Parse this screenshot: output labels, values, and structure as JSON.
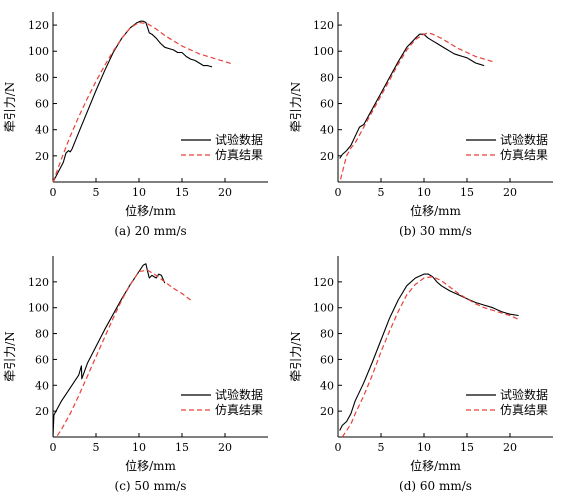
{
  "chart_data": [
    {
      "type": "line",
      "caption": "(a) 20 mm/s",
      "xlabel": "位移/mm",
      "ylabel": "牵引力/N",
      "xlim": [
        0,
        25
      ],
      "ylim": [
        0,
        130
      ],
      "xticks": [
        0,
        5,
        10,
        15,
        20
      ],
      "yticks": [
        20,
        40,
        60,
        80,
        100,
        120
      ],
      "legend_position": "bottom-right",
      "series": [
        {
          "name": "试验数据",
          "color": "#000000",
          "dash": "solid",
          "x": [
            0,
            1.2,
            1.5,
            1.8,
            2.0,
            2.2,
            3,
            4,
            5,
            6,
            7,
            8,
            9,
            9.8,
            10.2,
            10.5,
            10.8,
            11.0,
            11.2,
            11.5,
            12,
            12.5,
            13,
            13.5,
            14,
            14.5,
            15,
            15.5,
            16,
            16.5,
            17,
            17.5,
            18,
            18.5
          ],
          "y": [
            0,
            15,
            22,
            24,
            23,
            25,
            38,
            54,
            70,
            85,
            99,
            110,
            118,
            122,
            123,
            123,
            122,
            118,
            114,
            113,
            110,
            106,
            103,
            102,
            101,
            99,
            99,
            96,
            94,
            93,
            91,
            89,
            89,
            88
          ]
        },
        {
          "name": "仿真结果",
          "color": "#e8413a",
          "dash": "dashed",
          "x": [
            0,
            1,
            2,
            3,
            4,
            5,
            6,
            7,
            8,
            9,
            10,
            11,
            12,
            13,
            14,
            15,
            16,
            17,
            18,
            19,
            20,
            21
          ],
          "y": [
            0,
            18,
            35,
            50,
            64,
            77,
            89,
            100,
            110,
            118,
            122,
            121,
            117,
            112,
            108,
            104,
            101,
            98,
            96,
            94,
            92,
            90
          ]
        }
      ]
    },
    {
      "type": "line",
      "caption": "(b) 30 mm/s",
      "xlabel": "位移/mm",
      "ylabel": "牵引力/N",
      "xlim": [
        0,
        25
      ],
      "ylim": [
        0,
        130
      ],
      "xticks": [
        0,
        5,
        10,
        15,
        20
      ],
      "yticks": [
        20,
        40,
        60,
        80,
        100,
        120
      ],
      "legend_position": "bottom-right",
      "series": [
        {
          "name": "试验数据",
          "color": "#000000",
          "dash": "solid",
          "x": [
            0.2,
            0.5,
            1,
            1.5,
            2,
            2.5,
            3,
            4,
            5,
            6,
            7,
            8,
            9,
            9.5,
            10,
            10.3,
            10.5,
            11,
            11.5,
            12,
            12.5,
            13,
            13.5,
            14,
            14.5,
            15,
            15.5,
            16,
            16.5,
            17
          ],
          "y": [
            18,
            21,
            24,
            28,
            35,
            42,
            44,
            56,
            68,
            80,
            92,
            103,
            110,
            113,
            113,
            111,
            110,
            108,
            106,
            104,
            102,
            100,
            98,
            97,
            96,
            95,
            93,
            91,
            90,
            89
          ]
        },
        {
          "name": "仿真结果",
          "color": "#e8413a",
          "dash": "dashed",
          "x": [
            0.3,
            0.6,
            1,
            1.5,
            2,
            3,
            4,
            5,
            6,
            7,
            8,
            9,
            10,
            10.5,
            11,
            12,
            13,
            14,
            15,
            16,
            17,
            18
          ],
          "y": [
            2,
            10,
            20,
            26,
            30,
            42,
            54,
            66,
            78,
            90,
            101,
            109,
            113,
            114,
            113,
            110,
            106,
            102,
            99,
            96,
            94,
            92
          ]
        }
      ]
    },
    {
      "type": "line",
      "caption": "(c) 50 mm/s",
      "xlabel": "位移/mm",
      "ylabel": "牵引力/N",
      "xlim": [
        0,
        25
      ],
      "ylim": [
        0,
        140
      ],
      "xticks": [
        0,
        5,
        10,
        15,
        20
      ],
      "yticks": [
        20,
        40,
        60,
        80,
        100,
        120
      ],
      "legend_position": "bottom-right",
      "series": [
        {
          "name": "试验数据",
          "color": "#000000",
          "dash": "solid",
          "x": [
            0,
            0.1,
            1,
            2,
            3,
            3.3,
            3.35,
            4,
            5,
            6,
            7,
            8,
            9,
            10,
            10.5,
            10.8,
            11.0,
            11.2,
            11.5,
            12,
            12.3,
            12.6,
            13
          ],
          "y": [
            0,
            17,
            28,
            38,
            48,
            55,
            45,
            57,
            70,
            83,
            95,
            107,
            118,
            128,
            133,
            134,
            128,
            123,
            125,
            123,
            126,
            125,
            119
          ]
        },
        {
          "name": "仿真结果",
          "color": "#e8413a",
          "dash": "dashed",
          "x": [
            0.5,
            1,
            2,
            3,
            4,
            5,
            6,
            7,
            8,
            9,
            10,
            11,
            12,
            13,
            14,
            15,
            16
          ],
          "y": [
            1,
            6,
            18,
            32,
            47,
            62,
            77,
            92,
            106,
            118,
            128,
            129,
            125,
            120,
            115,
            111,
            106
          ]
        }
      ]
    },
    {
      "type": "line",
      "caption": "(d) 60 mm/s",
      "xlabel": "位移/mm",
      "ylabel": "牵引力/N",
      "xlim": [
        0,
        25
      ],
      "ylim": [
        0,
        140
      ],
      "xticks": [
        0,
        5,
        10,
        15,
        20
      ],
      "yticks": [
        20,
        40,
        60,
        80,
        100,
        120
      ],
      "legend_position": "bottom-right",
      "series": [
        {
          "name": "试验数据",
          "color": "#000000",
          "dash": "solid",
          "x": [
            0.2,
            0.5,
            1,
            1.5,
            2,
            2.5,
            3,
            4,
            5,
            6,
            7,
            8,
            9,
            10,
            10.5,
            11,
            11.5,
            12,
            13,
            14,
            15,
            16,
            17,
            18,
            19,
            20,
            21
          ],
          "y": [
            5,
            9,
            12,
            18,
            28,
            35,
            42,
            58,
            75,
            92,
            106,
            117,
            123,
            126,
            126,
            124,
            120,
            117,
            113,
            110,
            107,
            104,
            102,
            100,
            97,
            95,
            94
          ]
        },
        {
          "name": "仿真结果",
          "color": "#e8413a",
          "dash": "dashed",
          "x": [
            0.5,
            1,
            1.5,
            2,
            3,
            4,
            5,
            6,
            7,
            8,
            9,
            10,
            11,
            12,
            13,
            14,
            15,
            16,
            17,
            18,
            19,
            20,
            21
          ],
          "y": [
            0,
            5,
            10,
            18,
            32,
            48,
            66,
            82,
            97,
            110,
            118,
            123,
            124,
            121,
            116,
            111,
            107,
            103,
            100,
            98,
            96,
            94,
            91
          ]
        }
      ]
    }
  ]
}
